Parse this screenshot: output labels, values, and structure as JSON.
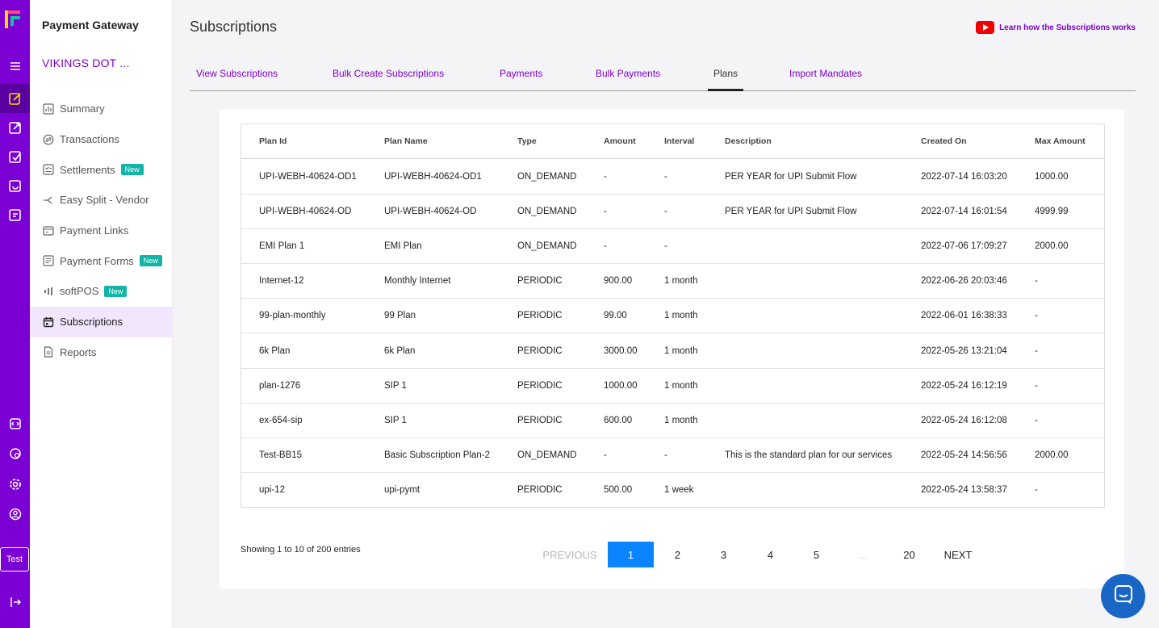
{
  "colors": {
    "brand": "#7b00d4",
    "rail_active": "#5a00a0",
    "badge": "#12b5a7",
    "pager_active": "#0a84ff",
    "chat": "#1a66c7"
  },
  "rail": {
    "icons": [
      "logo-icon",
      "menu-icon",
      "payment-gateway-icon",
      "payouts-icon",
      "verification-icon",
      "subscriptions-app-icon",
      "store-icon",
      "developers-icon",
      "help-icon",
      "settings-icon",
      "account-icon",
      "logout-icon"
    ],
    "test_label": "Test"
  },
  "sidebar": {
    "title": "Payment Gateway",
    "merchant": "VIKINGS DOT ...",
    "items": [
      {
        "label": "Summary",
        "icon": "chart-icon",
        "badge": ""
      },
      {
        "label": "Transactions",
        "icon": "transactions-icon",
        "badge": ""
      },
      {
        "label": "Settlements",
        "icon": "settlements-icon",
        "badge": "New"
      },
      {
        "label": "Easy Split - Vendor",
        "icon": "split-icon",
        "badge": ""
      },
      {
        "label": "Payment Links",
        "icon": "link-icon",
        "badge": ""
      },
      {
        "label": "Payment Forms",
        "icon": "form-icon",
        "badge": "New"
      },
      {
        "label": "softPOS",
        "icon": "signal-icon",
        "badge": "New"
      },
      {
        "label": "Subscriptions",
        "icon": "calendar-icon",
        "badge": ""
      },
      {
        "label": "Reports",
        "icon": "document-icon",
        "badge": ""
      }
    ],
    "active_index": 7
  },
  "header": {
    "title": "Subscriptions",
    "learn_link": "Learn how the Subscriptions works"
  },
  "tabs": [
    {
      "label": "View Subscriptions"
    },
    {
      "label": "Bulk Create Subscriptions"
    },
    {
      "label": "Payments"
    },
    {
      "label": "Bulk Payments"
    },
    {
      "label": "Plans"
    },
    {
      "label": "Import Mandates"
    }
  ],
  "active_tab": 4,
  "table": {
    "columns": [
      "Plan Id",
      "Plan Name",
      "Type",
      "Amount",
      "Interval",
      "Description",
      "Created On",
      "Max Amount"
    ],
    "rows": [
      [
        "UPI-WEBH-40624-OD1",
        "UPI-WEBH-40624-OD1",
        "ON_DEMAND",
        "-",
        "-",
        "PER YEAR for UPI Submit Flow",
        "2022-07-14 16:03:20",
        "1000.00"
      ],
      [
        "UPI-WEBH-40624-OD",
        "UPI-WEBH-40624-OD",
        "ON_DEMAND",
        "-",
        "-",
        "PER YEAR for UPI Submit Flow",
        "2022-07-14 16:01:54",
        "4999.99"
      ],
      [
        "EMI Plan 1",
        "EMI Plan",
        "ON_DEMAND",
        "-",
        "-",
        "",
        "2022-07-06 17:09:27",
        "2000.00"
      ],
      [
        "Internet-12",
        "Monthly Internet",
        "PERIODIC",
        "900.00",
        "1 month",
        "",
        "2022-06-26 20:03:46",
        "-"
      ],
      [
        "99-plan-monthly",
        "99 Plan",
        "PERIODIC",
        "99.00",
        "1 month",
        "",
        "2022-06-01 16:38:33",
        "-"
      ],
      [
        "6k Plan",
        "6k Plan",
        "PERIODIC",
        "3000.00",
        "1 month",
        "",
        "2022-05-26 13:21:04",
        "-"
      ],
      [
        "plan-1276",
        "SIP 1",
        "PERIODIC",
        "1000.00",
        "1 month",
        "",
        "2022-05-24 16:12:19",
        "-"
      ],
      [
        "ex-654-sip",
        "SIP 1",
        "PERIODIC",
        "600.00",
        "1 month",
        "",
        "2022-05-24 16:12:08",
        "-"
      ],
      [
        "Test-BB15",
        "Basic Subscription Plan-2",
        "ON_DEMAND",
        "-",
        "-",
        "This is the standard plan for our services",
        "2022-05-24 14:56:56",
        "2000.00"
      ],
      [
        "upi-12",
        "upi-pymt",
        "PERIODIC",
        "500.00",
        "1 week",
        "",
        "2022-05-24 13:58:37",
        "-"
      ]
    ]
  },
  "pagination": {
    "showing": "Showing 1 to 10 of 200 entries",
    "previous": "PREVIOUS",
    "pages": [
      "1",
      "2",
      "3",
      "4",
      "5",
      "...",
      "20"
    ],
    "current": "1",
    "next": "NEXT"
  }
}
